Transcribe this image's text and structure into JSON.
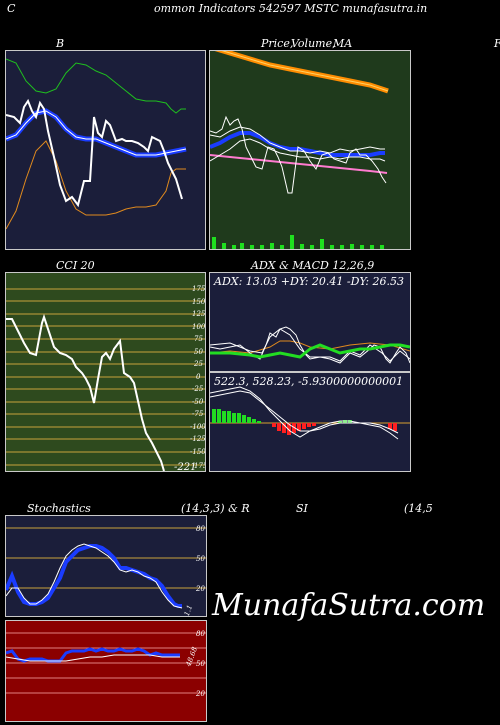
{
  "header": {
    "corner_letter": "C",
    "text": "ommon  Indicators 542597 MSTC munafasutra.in"
  },
  "panels": {
    "bollinger": {
      "title": "B"
    },
    "price": {
      "title_price": "Price,",
      "title_overlay": "Volume,",
      "title_ma": "MA",
      "edge_letter": "F"
    },
    "cci": {
      "title": "CCI 20",
      "ticks": [
        "175",
        "150",
        "125",
        "100",
        "75",
        "50",
        "25",
        "0",
        "-25",
        "-50",
        "-75",
        "-100",
        "-125",
        "-150",
        "175"
      ],
      "last_value": "-221"
    },
    "adx": {
      "title": "ADX  & MACD 12,26,9",
      "readout": "ADX: 13.03  +DY: 20.41 -DY: 26.53"
    },
    "macd": {
      "readout": "522.3,  528.23,  -5.9300000000001"
    },
    "stochastics": {
      "title_left": "Stochastics",
      "title_params": "(14,3,3) & R",
      "ticks": [
        "80",
        "50",
        "20"
      ],
      "last_value": "1.1"
    },
    "rsi": {
      "title": "SI",
      "title_params": "(14,5",
      "ticks": [
        "80",
        "50",
        "20"
      ],
      "last_value": "48.68"
    }
  },
  "watermark": "MunafaSutra.com",
  "colors": {
    "navy_panel": "#1b1e3a",
    "green_panel": "#1f3a1c",
    "cci_panel": "#2e4a1e",
    "rsi_panel": "#8b0000",
    "orange_band": "#ff8c00",
    "blue_line": "#1a3cff",
    "macd_red": "#ff2020",
    "macd_green": "#22dd22"
  }
}
